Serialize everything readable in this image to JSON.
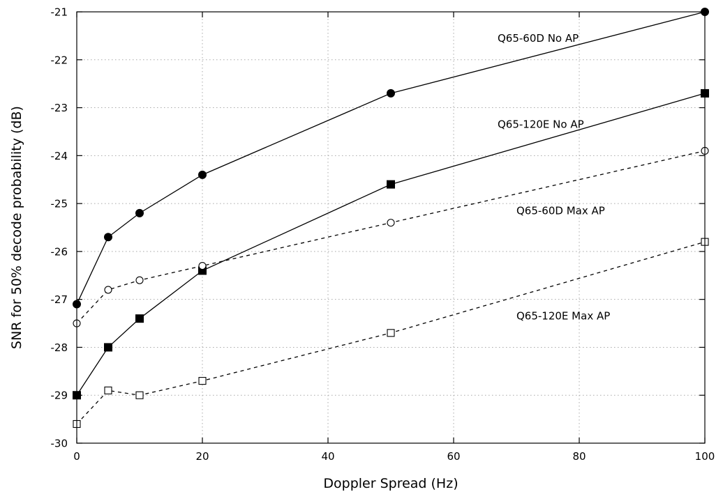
{
  "chart_data": {
    "type": "line",
    "xlabel": "Doppler Spread (Hz)",
    "ylabel": "SNR for 50% decode probability (dB)",
    "xlim": [
      0,
      100
    ],
    "ylim": [
      -30,
      -21
    ],
    "xticks": [
      0,
      20,
      40,
      60,
      80,
      100
    ],
    "yticks": [
      -30,
      -29,
      -28,
      -27,
      -26,
      -25,
      -24,
      -23,
      -22,
      -21
    ],
    "grid": true,
    "series": [
      {
        "name": "Q65-60D No AP",
        "marker": "filled-circle",
        "line": "solid",
        "x": [
          0,
          5,
          10,
          20,
          50,
          100
        ],
        "y": [
          -27.1,
          -25.7,
          -25.2,
          -24.4,
          -22.7,
          -21.0
        ]
      },
      {
        "name": "Q65-120E No AP",
        "marker": "filled-square",
        "line": "solid",
        "x": [
          0,
          5,
          10,
          20,
          50,
          100
        ],
        "y": [
          -29.0,
          -28.0,
          -27.4,
          -26.4,
          -24.6,
          -22.7
        ]
      },
      {
        "name": "Q65-60D Max AP",
        "marker": "open-circle",
        "line": "dashed",
        "x": [
          0,
          5,
          10,
          20,
          50,
          100
        ],
        "y": [
          -27.5,
          -26.8,
          -26.6,
          -26.3,
          -25.4,
          -23.9
        ]
      },
      {
        "name": "Q65-120E Max AP",
        "marker": "open-square",
        "line": "dashed",
        "x": [
          0,
          5,
          10,
          20,
          50,
          100
        ],
        "y": [
          -29.6,
          -28.9,
          -29.0,
          -28.7,
          -27.7,
          -25.8
        ]
      }
    ],
    "annotations": [
      {
        "text": "Q65-60D No AP",
        "x": 67,
        "y": -21.55
      },
      {
        "text": "Q65-120E No AP",
        "x": 67,
        "y": -23.35
      },
      {
        "text": "Q65-60D Max AP",
        "x": 70,
        "y": -25.15
      },
      {
        "text": "Q65-120E Max AP",
        "x": 70,
        "y": -27.35
      }
    ]
  }
}
